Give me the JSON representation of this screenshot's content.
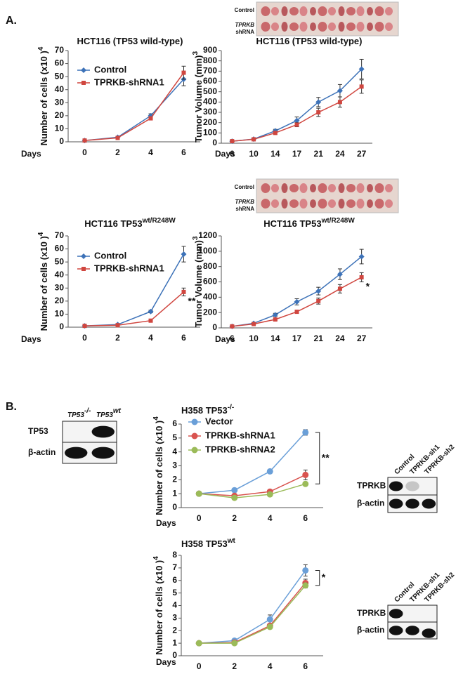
{
  "figure": {
    "panel_labels": [
      "A.",
      "B."
    ],
    "photos": [
      {
        "labels": [
          "Control",
          "TPRKB",
          "shRNA"
        ]
      },
      {
        "labels": [
          "Control",
          "TPRKB",
          "shRNA"
        ]
      }
    ],
    "blots": [
      {
        "columns": [
          {
            "text": "TP53",
            "sup": "-/-"
          },
          {
            "text": "TP53",
            "sup": "wt"
          }
        ],
        "rows": [
          "TP53",
          "β-actin"
        ]
      },
      {
        "columns": [
          {
            "text": "Control"
          },
          {
            "text": "TPRKB-sh1"
          },
          {
            "text": "TPRKB-sh2"
          }
        ],
        "rows": [
          "TPRKB",
          "β-actin"
        ]
      },
      {
        "columns": [
          {
            "text": "Control"
          },
          {
            "text": "TPRKB-sh1"
          },
          {
            "text": "TPRKB-sh2"
          }
        ],
        "rows": [
          "TPRKB",
          "β-actin"
        ]
      }
    ]
  },
  "chart_data": [
    {
      "type": "line",
      "title": "HCT116 (TP53 wild-type)",
      "y_label": "Number of cells (x10 )",
      "y_label_sup": "4",
      "x_label": "Days",
      "categories": [
        "0",
        "2",
        "4",
        "6"
      ],
      "ylim": [
        0,
        70
      ],
      "yticks": [
        0,
        10,
        20,
        30,
        40,
        50,
        60,
        70
      ],
      "series": [
        {
          "name": "Control",
          "color": "#3d72b8",
          "marker": "diamond",
          "values": [
            1,
            3.5,
            20,
            48
          ],
          "errors": [
            0.2,
            0.5,
            1.5,
            5
          ]
        },
        {
          "name": "TPRKB-shRNA1",
          "color": "#d0463f",
          "marker": "square",
          "values": [
            1,
            3,
            18,
            53
          ],
          "errors": [
            0.2,
            0.4,
            1,
            5
          ]
        }
      ]
    },
    {
      "type": "line",
      "title": "HCT116 (TP53 wild-type)",
      "y_label": "Tumor Volume (mm)",
      "y_label_sup": "3",
      "x_label": "Days",
      "categories": [
        "6",
        "10",
        "14",
        "17",
        "21",
        "24",
        "27"
      ],
      "ylim": [
        0,
        900
      ],
      "yticks": [
        0,
        100,
        200,
        300,
        400,
        500,
        600,
        700,
        800,
        900
      ],
      "series": [
        {
          "color": "#3d72b8",
          "marker": "diamond",
          "values": [
            20,
            40,
            120,
            220,
            400,
            510,
            720
          ],
          "errors": [
            5,
            8,
            15,
            35,
            45,
            60,
            95
          ]
        },
        {
          "color": "#d0463f",
          "marker": "square",
          "values": [
            20,
            38,
            100,
            180,
            300,
            400,
            550
          ],
          "errors": [
            5,
            8,
            12,
            20,
            40,
            50,
            65
          ]
        }
      ]
    },
    {
      "type": "line",
      "title": "HCT116 TP53",
      "title_sup": "wt/R248W",
      "y_label": "Number of cells (x10 )",
      "y_label_sup": "4",
      "x_label": "Days",
      "categories": [
        "0",
        "2",
        "4",
        "6"
      ],
      "ylim": [
        0,
        70
      ],
      "yticks": [
        0,
        10,
        20,
        30,
        40,
        50,
        60,
        70
      ],
      "annotation": "**",
      "series": [
        {
          "name": "Control",
          "color": "#3d72b8",
          "marker": "diamond",
          "values": [
            1,
            2,
            12,
            56
          ],
          "errors": [
            0.2,
            0.3,
            1,
            6
          ]
        },
        {
          "name": "TPRKB-shRNA1",
          "color": "#d0463f",
          "marker": "square",
          "values": [
            1,
            1.5,
            5,
            27
          ],
          "errors": [
            0.2,
            0.3,
            0.6,
            3
          ]
        }
      ]
    },
    {
      "type": "line",
      "title": "HCT116 TP53",
      "title_sup": "wt/R248W",
      "y_label": "Tumor Volume (mm)",
      "y_label_sup": "3",
      "x_label": "Days",
      "categories": [
        "6",
        "10",
        "14",
        "17",
        "21",
        "24",
        "27"
      ],
      "ylim": [
        0,
        1200
      ],
      "yticks": [
        0,
        200,
        400,
        600,
        800,
        1000,
        1200
      ],
      "annotation": "*",
      "series": [
        {
          "color": "#3d72b8",
          "marker": "diamond",
          "values": [
            20,
            60,
            170,
            340,
            480,
            700,
            930
          ],
          "errors": [
            5,
            10,
            20,
            40,
            50,
            70,
            95
          ]
        },
        {
          "color": "#d0463f",
          "marker": "square",
          "values": [
            20,
            50,
            110,
            210,
            350,
            510,
            660
          ],
          "errors": [
            5,
            8,
            12,
            20,
            40,
            55,
            60
          ]
        }
      ]
    },
    {
      "type": "line",
      "title": "H358 TP53",
      "title_sup": "-/-",
      "y_label": "Number of cells (x10 )",
      "y_label_sup": "4",
      "x_label": "Days",
      "categories": [
        "0",
        "2",
        "4",
        "6"
      ],
      "ylim": [
        0,
        6
      ],
      "yticks": [
        0,
        1,
        2,
        3,
        4,
        5,
        6
      ],
      "annotation": "**",
      "series": [
        {
          "name": "Vector",
          "color": "#6a9fd8",
          "marker": "circle",
          "values": [
            1,
            1.25,
            2.6,
            5.4
          ],
          "errors": [
            0,
            0.05,
            0.08,
            0.2
          ]
        },
        {
          "name": "TPRKB-shRNA1",
          "color": "#d9534f",
          "marker": "circle",
          "values": [
            1,
            0.85,
            1.15,
            2.35
          ],
          "errors": [
            0,
            0.05,
            0.06,
            0.35
          ]
        },
        {
          "name": "TPRKB-shRNA2",
          "color": "#9bbb59",
          "marker": "circle",
          "values": [
            1,
            0.7,
            0.95,
            1.7
          ],
          "errors": [
            0,
            0.04,
            0.05,
            0.08
          ]
        }
      ]
    },
    {
      "type": "line",
      "title": "H358 TP53",
      "title_sup": "wt",
      "y_label": "Number of cells (x10 )",
      "y_label_sup": "4",
      "x_label": "Days",
      "categories": [
        "0",
        "2",
        "4",
        "6"
      ],
      "ylim": [
        0,
        8
      ],
      "yticks": [
        0,
        1,
        2,
        3,
        4,
        5,
        6,
        7,
        8
      ],
      "annotation": "*",
      "series": [
        {
          "color": "#6a9fd8",
          "marker": "circle",
          "values": [
            1,
            1.2,
            2.9,
            6.8
          ],
          "errors": [
            0,
            0.05,
            0.35,
            0.45
          ]
        },
        {
          "color": "#d9534f",
          "marker": "circle",
          "values": [
            1,
            1.05,
            2.4,
            5.8
          ],
          "errors": [
            0,
            0.05,
            0.15,
            0.3
          ]
        },
        {
          "color": "#9bbb59",
          "marker": "circle",
          "values": [
            1,
            1.0,
            2.3,
            5.6
          ],
          "errors": [
            0,
            0.04,
            0.1,
            0.2
          ]
        }
      ]
    }
  ]
}
